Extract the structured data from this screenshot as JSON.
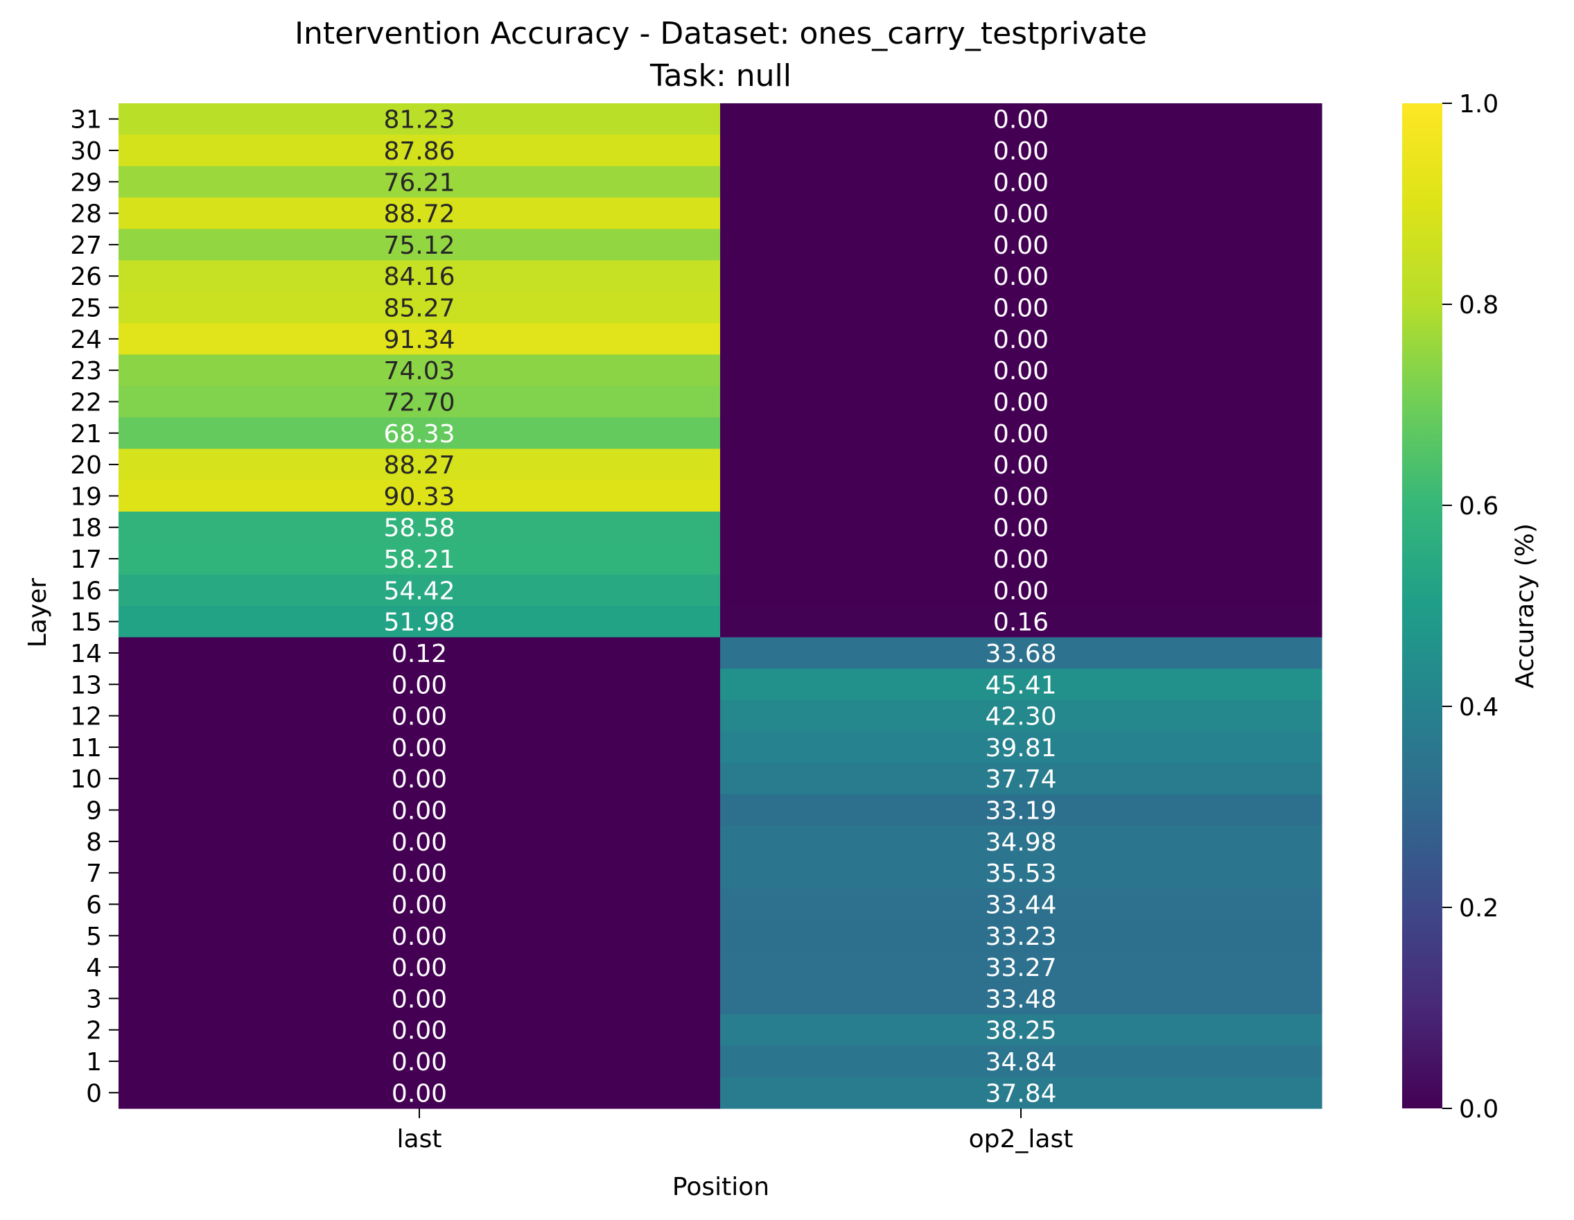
{
  "chart_data": {
    "type": "heatmap",
    "title": "Intervention Accuracy - Dataset: ones_carry_testprivate",
    "subtitle": "Task: null",
    "xlabel": "Position",
    "ylabel": "Layer",
    "colorbar_label": "Accuracy (%)",
    "colormap": "viridis",
    "vmin": 0.0,
    "vmax": 1.0,
    "colorbar_ticks": [
      "0.0",
      "0.2",
      "0.4",
      "0.6",
      "0.8",
      "1.0"
    ],
    "x_categories": [
      "last",
      "op2_last"
    ],
    "y_categories": [
      "31",
      "30",
      "29",
      "28",
      "27",
      "26",
      "25",
      "24",
      "23",
      "22",
      "21",
      "20",
      "19",
      "18",
      "17",
      "16",
      "15",
      "14",
      "13",
      "12",
      "11",
      "10",
      "9",
      "8",
      "7",
      "6",
      "5",
      "4",
      "3",
      "2",
      "1",
      "0"
    ],
    "values": [
      [
        81.23,
        0.0
      ],
      [
        87.86,
        0.0
      ],
      [
        76.21,
        0.0
      ],
      [
        88.72,
        0.0
      ],
      [
        75.12,
        0.0
      ],
      [
        84.16,
        0.0
      ],
      [
        85.27,
        0.0
      ],
      [
        91.34,
        0.0
      ],
      [
        74.03,
        0.0
      ],
      [
        72.7,
        0.0
      ],
      [
        68.33,
        0.0
      ],
      [
        88.27,
        0.0
      ],
      [
        90.33,
        0.0
      ],
      [
        58.58,
        0.0
      ],
      [
        58.21,
        0.0
      ],
      [
        54.42,
        0.0
      ],
      [
        51.98,
        0.16
      ],
      [
        0.12,
        33.68
      ],
      [
        0.0,
        45.41
      ],
      [
        0.0,
        42.3
      ],
      [
        0.0,
        39.81
      ],
      [
        0.0,
        37.74
      ],
      [
        0.0,
        33.19
      ],
      [
        0.0,
        34.98
      ],
      [
        0.0,
        35.53
      ],
      [
        0.0,
        33.44
      ],
      [
        0.0,
        33.23
      ],
      [
        0.0,
        33.27
      ],
      [
        0.0,
        33.48
      ],
      [
        0.0,
        38.25
      ],
      [
        0.0,
        34.84
      ],
      [
        0.0,
        37.84
      ]
    ]
  }
}
